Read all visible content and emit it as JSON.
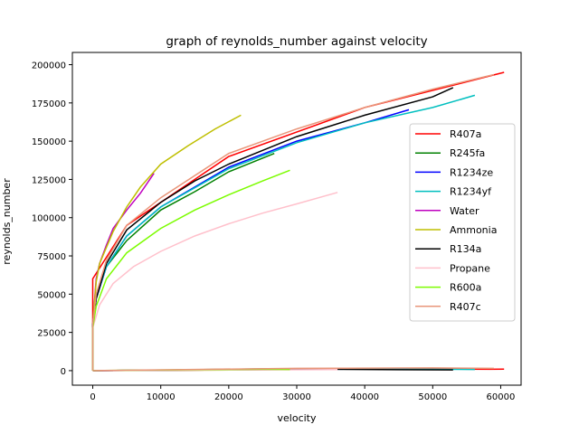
{
  "chart_data": {
    "type": "line",
    "title": "graph of reynolds_number against velocity",
    "xlabel": "velocity",
    "ylabel": "reynolds_number",
    "xlim": [
      -3000,
      63000
    ],
    "ylim": [
      -9500,
      208000
    ],
    "xticks": [
      0,
      10000,
      20000,
      30000,
      40000,
      50000,
      60000
    ],
    "xtick_labels": [
      "0",
      "10000",
      "20000",
      "30000",
      "40000",
      "50000",
      "60000"
    ],
    "yticks": [
      0,
      25000,
      50000,
      75000,
      100000,
      125000,
      150000,
      175000,
      200000
    ],
    "ytick_labels": [
      "0",
      "25000",
      "50000",
      "75000",
      "100000",
      "125000",
      "150000",
      "175000",
      "200000"
    ],
    "grid": false,
    "legend_position": "center-right",
    "series": [
      {
        "name": "R407a",
        "color": "#ff0000",
        "upper": [
          [
            0,
            60000
          ],
          [
            5000,
            95000
          ],
          [
            20000,
            140000
          ],
          [
            40000,
            172000
          ],
          [
            60500,
            195000
          ]
        ],
        "lower": [
          [
            0,
            0
          ],
          [
            20000,
            500
          ],
          [
            40000,
            1200
          ],
          [
            58500,
            900
          ],
          [
            60500,
            1000
          ]
        ]
      },
      {
        "name": "R245fa",
        "color": "#008000",
        "upper": [
          [
            0,
            30000
          ],
          [
            500,
            47000
          ],
          [
            2000,
            68000
          ],
          [
            5000,
            85000
          ],
          [
            10000,
            105000
          ],
          [
            15000,
            117000
          ],
          [
            20000,
            130000
          ],
          [
            26700,
            142000
          ]
        ],
        "lower": [
          [
            0,
            0
          ],
          [
            10000,
            300
          ],
          [
            20000,
            900
          ],
          [
            26700,
            1200
          ]
        ]
      },
      {
        "name": "R1234ze",
        "color": "#0000ff",
        "upper": [
          [
            0,
            30000
          ],
          [
            500,
            47000
          ],
          [
            2000,
            68000
          ],
          [
            5000,
            88000
          ],
          [
            10000,
            107000
          ],
          [
            20000,
            133000
          ],
          [
            30000,
            150000
          ],
          [
            40000,
            162000
          ],
          [
            46500,
            170500
          ]
        ],
        "lower": [
          [
            0,
            0
          ],
          [
            20000,
            600
          ],
          [
            40000,
            1000
          ],
          [
            46500,
            900
          ]
        ]
      },
      {
        "name": "R1234yf",
        "color": "#00bfbf",
        "upper": [
          [
            0,
            30000
          ],
          [
            500,
            48000
          ],
          [
            2000,
            68000
          ],
          [
            5000,
            88000
          ],
          [
            10000,
            107000
          ],
          [
            20000,
            132000
          ],
          [
            30000,
            149000
          ],
          [
            40000,
            162000
          ],
          [
            50000,
            172000
          ],
          [
            56200,
            180000
          ]
        ],
        "lower": [
          [
            0,
            0
          ],
          [
            20000,
            600
          ],
          [
            40000,
            1000
          ],
          [
            56200,
            800
          ]
        ]
      },
      {
        "name": "Water",
        "color": "#bf00bf",
        "upper": [
          [
            0,
            30000
          ],
          [
            500,
            60000
          ],
          [
            1000,
            70000
          ],
          [
            2000,
            82000
          ],
          [
            3000,
            93000
          ],
          [
            5000,
            105000
          ],
          [
            7000,
            116000
          ],
          [
            9000,
            129000
          ]
        ],
        "lower": [
          [
            0,
            0
          ],
          [
            5000,
            100
          ],
          [
            9000,
            200
          ]
        ]
      },
      {
        "name": "Ammonia",
        "color": "#bfbf00",
        "upper": [
          [
            0,
            30000
          ],
          [
            500,
            58000
          ],
          [
            1000,
            70000
          ],
          [
            3000,
            91000
          ],
          [
            5000,
            107000
          ],
          [
            7000,
            120000
          ],
          [
            10000,
            135000
          ],
          [
            14000,
            147000
          ],
          [
            18000,
            158000
          ],
          [
            21800,
            167000
          ]
        ],
        "lower": [
          [
            0,
            0
          ],
          [
            10000,
            200
          ],
          [
            21800,
            400
          ]
        ]
      },
      {
        "name": "R134a",
        "color": "#000000",
        "upper": [
          [
            0,
            30000
          ],
          [
            500,
            47000
          ],
          [
            2000,
            70000
          ],
          [
            5000,
            92000
          ],
          [
            10000,
            110000
          ],
          [
            15000,
            124000
          ],
          [
            20000,
            135000
          ],
          [
            30000,
            153000
          ],
          [
            40000,
            167000
          ],
          [
            50000,
            179000
          ],
          [
            53000,
            185000
          ]
        ],
        "lower": [
          [
            0,
            0
          ],
          [
            20000,
            500
          ],
          [
            35000,
            900
          ],
          [
            45000,
            600
          ],
          [
            53000,
            500
          ]
        ]
      },
      {
        "name": "Propane",
        "color": "#ffc0cb",
        "upper": [
          [
            0,
            28000
          ],
          [
            1000,
            43000
          ],
          [
            3000,
            57000
          ],
          [
            6000,
            68000
          ],
          [
            10000,
            78000
          ],
          [
            15000,
            88000
          ],
          [
            20000,
            96000
          ],
          [
            25000,
            103000
          ],
          [
            30000,
            109000
          ],
          [
            36000,
            116500
          ]
        ],
        "lower": [
          [
            0,
            0
          ],
          [
            20000,
            400
          ],
          [
            36000,
            700
          ]
        ]
      },
      {
        "name": "R600a",
        "color": "#7cfc00",
        "upper": [
          [
            0,
            28000
          ],
          [
            500,
            42000
          ],
          [
            2000,
            60000
          ],
          [
            5000,
            77000
          ],
          [
            10000,
            93000
          ],
          [
            15000,
            105000
          ],
          [
            20000,
            115000
          ],
          [
            25000,
            124000
          ],
          [
            29000,
            131000
          ]
        ],
        "lower": [
          [
            0,
            0
          ],
          [
            15000,
            600
          ],
          [
            25000,
            900
          ],
          [
            29000,
            800
          ]
        ]
      },
      {
        "name": "R407c",
        "color": "#e9967a",
        "upper": [
          [
            0,
            30000
          ],
          [
            500,
            50000
          ],
          [
            2000,
            72000
          ],
          [
            5000,
            95000
          ],
          [
            10000,
            113000
          ],
          [
            20000,
            142000
          ],
          [
            30000,
            158000
          ],
          [
            40000,
            172000
          ],
          [
            50000,
            184000
          ],
          [
            59000,
            193500
          ]
        ],
        "lower": [
          [
            0,
            0
          ],
          [
            15000,
            800
          ],
          [
            30000,
            1500
          ],
          [
            50000,
            1800
          ],
          [
            59000,
            1500
          ]
        ]
      }
    ]
  }
}
